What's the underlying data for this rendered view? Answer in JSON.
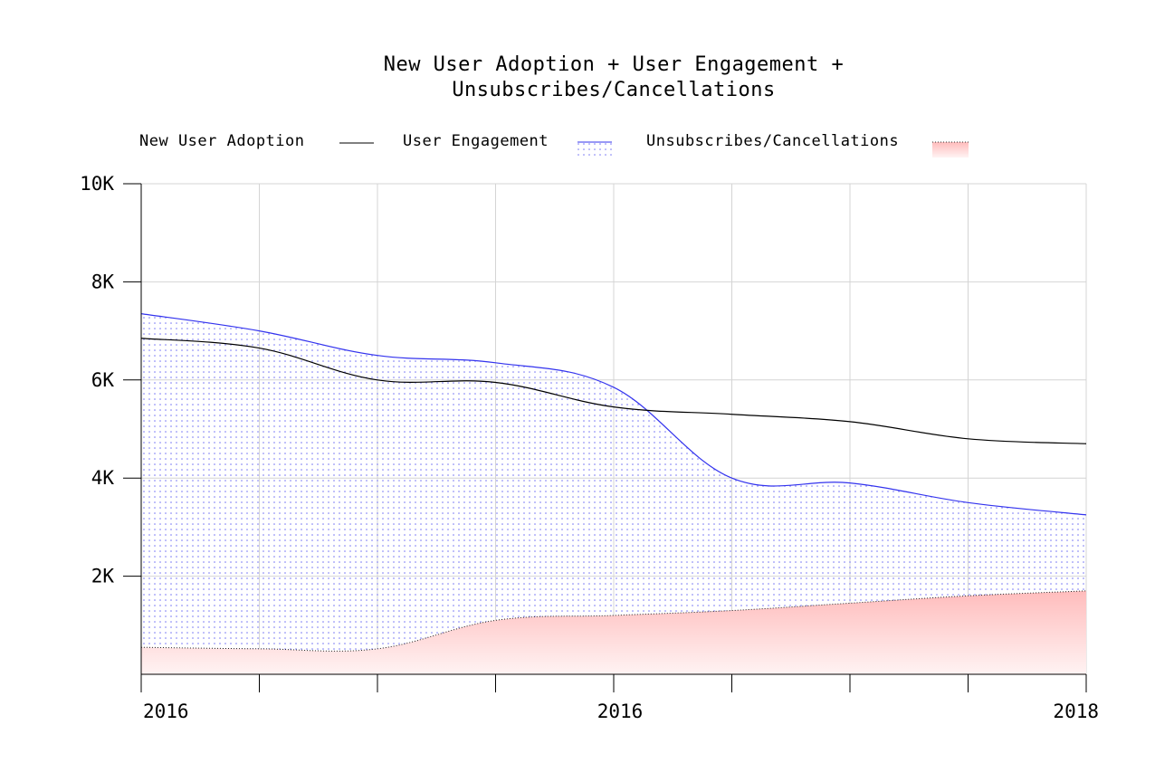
{
  "chart_data": {
    "type": "area",
    "title": [
      "New User Adoption + User Engagement +",
      "Unsubscribes/Cancellations"
    ],
    "xlabel": "",
    "ylabel": "",
    "ylim": [
      0,
      10000
    ],
    "y_ticks": [
      2000,
      4000,
      6000,
      8000,
      10000
    ],
    "y_tick_labels": [
      "2K",
      "4K",
      "6K",
      "8K",
      "10K"
    ],
    "x_tick_labels": [
      "2016",
      "2016",
      "2018"
    ],
    "grid": true,
    "legend_position": "top",
    "colors": {
      "new_user_adoption": "#000000",
      "user_engagement": "#3333ee",
      "unsubscribes": "#ff8080"
    },
    "x": [
      0,
      1,
      2,
      3,
      4,
      5,
      6,
      7,
      8
    ],
    "series": [
      {
        "name": "New User Adoption",
        "style": "line",
        "values": [
          6850,
          6650,
          6000,
          5950,
          5450,
          5300,
          5150,
          4800,
          4700
        ]
      },
      {
        "name": "User Engagement",
        "style": "dotted-area",
        "values": [
          7350,
          7000,
          6500,
          6350,
          5850,
          4000,
          3900,
          3500,
          3250
        ]
      },
      {
        "name": "Unsubscribes/Cancellations",
        "style": "gradient-area",
        "values": [
          550,
          520,
          520,
          1100,
          1200,
          1300,
          1450,
          1600,
          1700
        ]
      }
    ]
  }
}
